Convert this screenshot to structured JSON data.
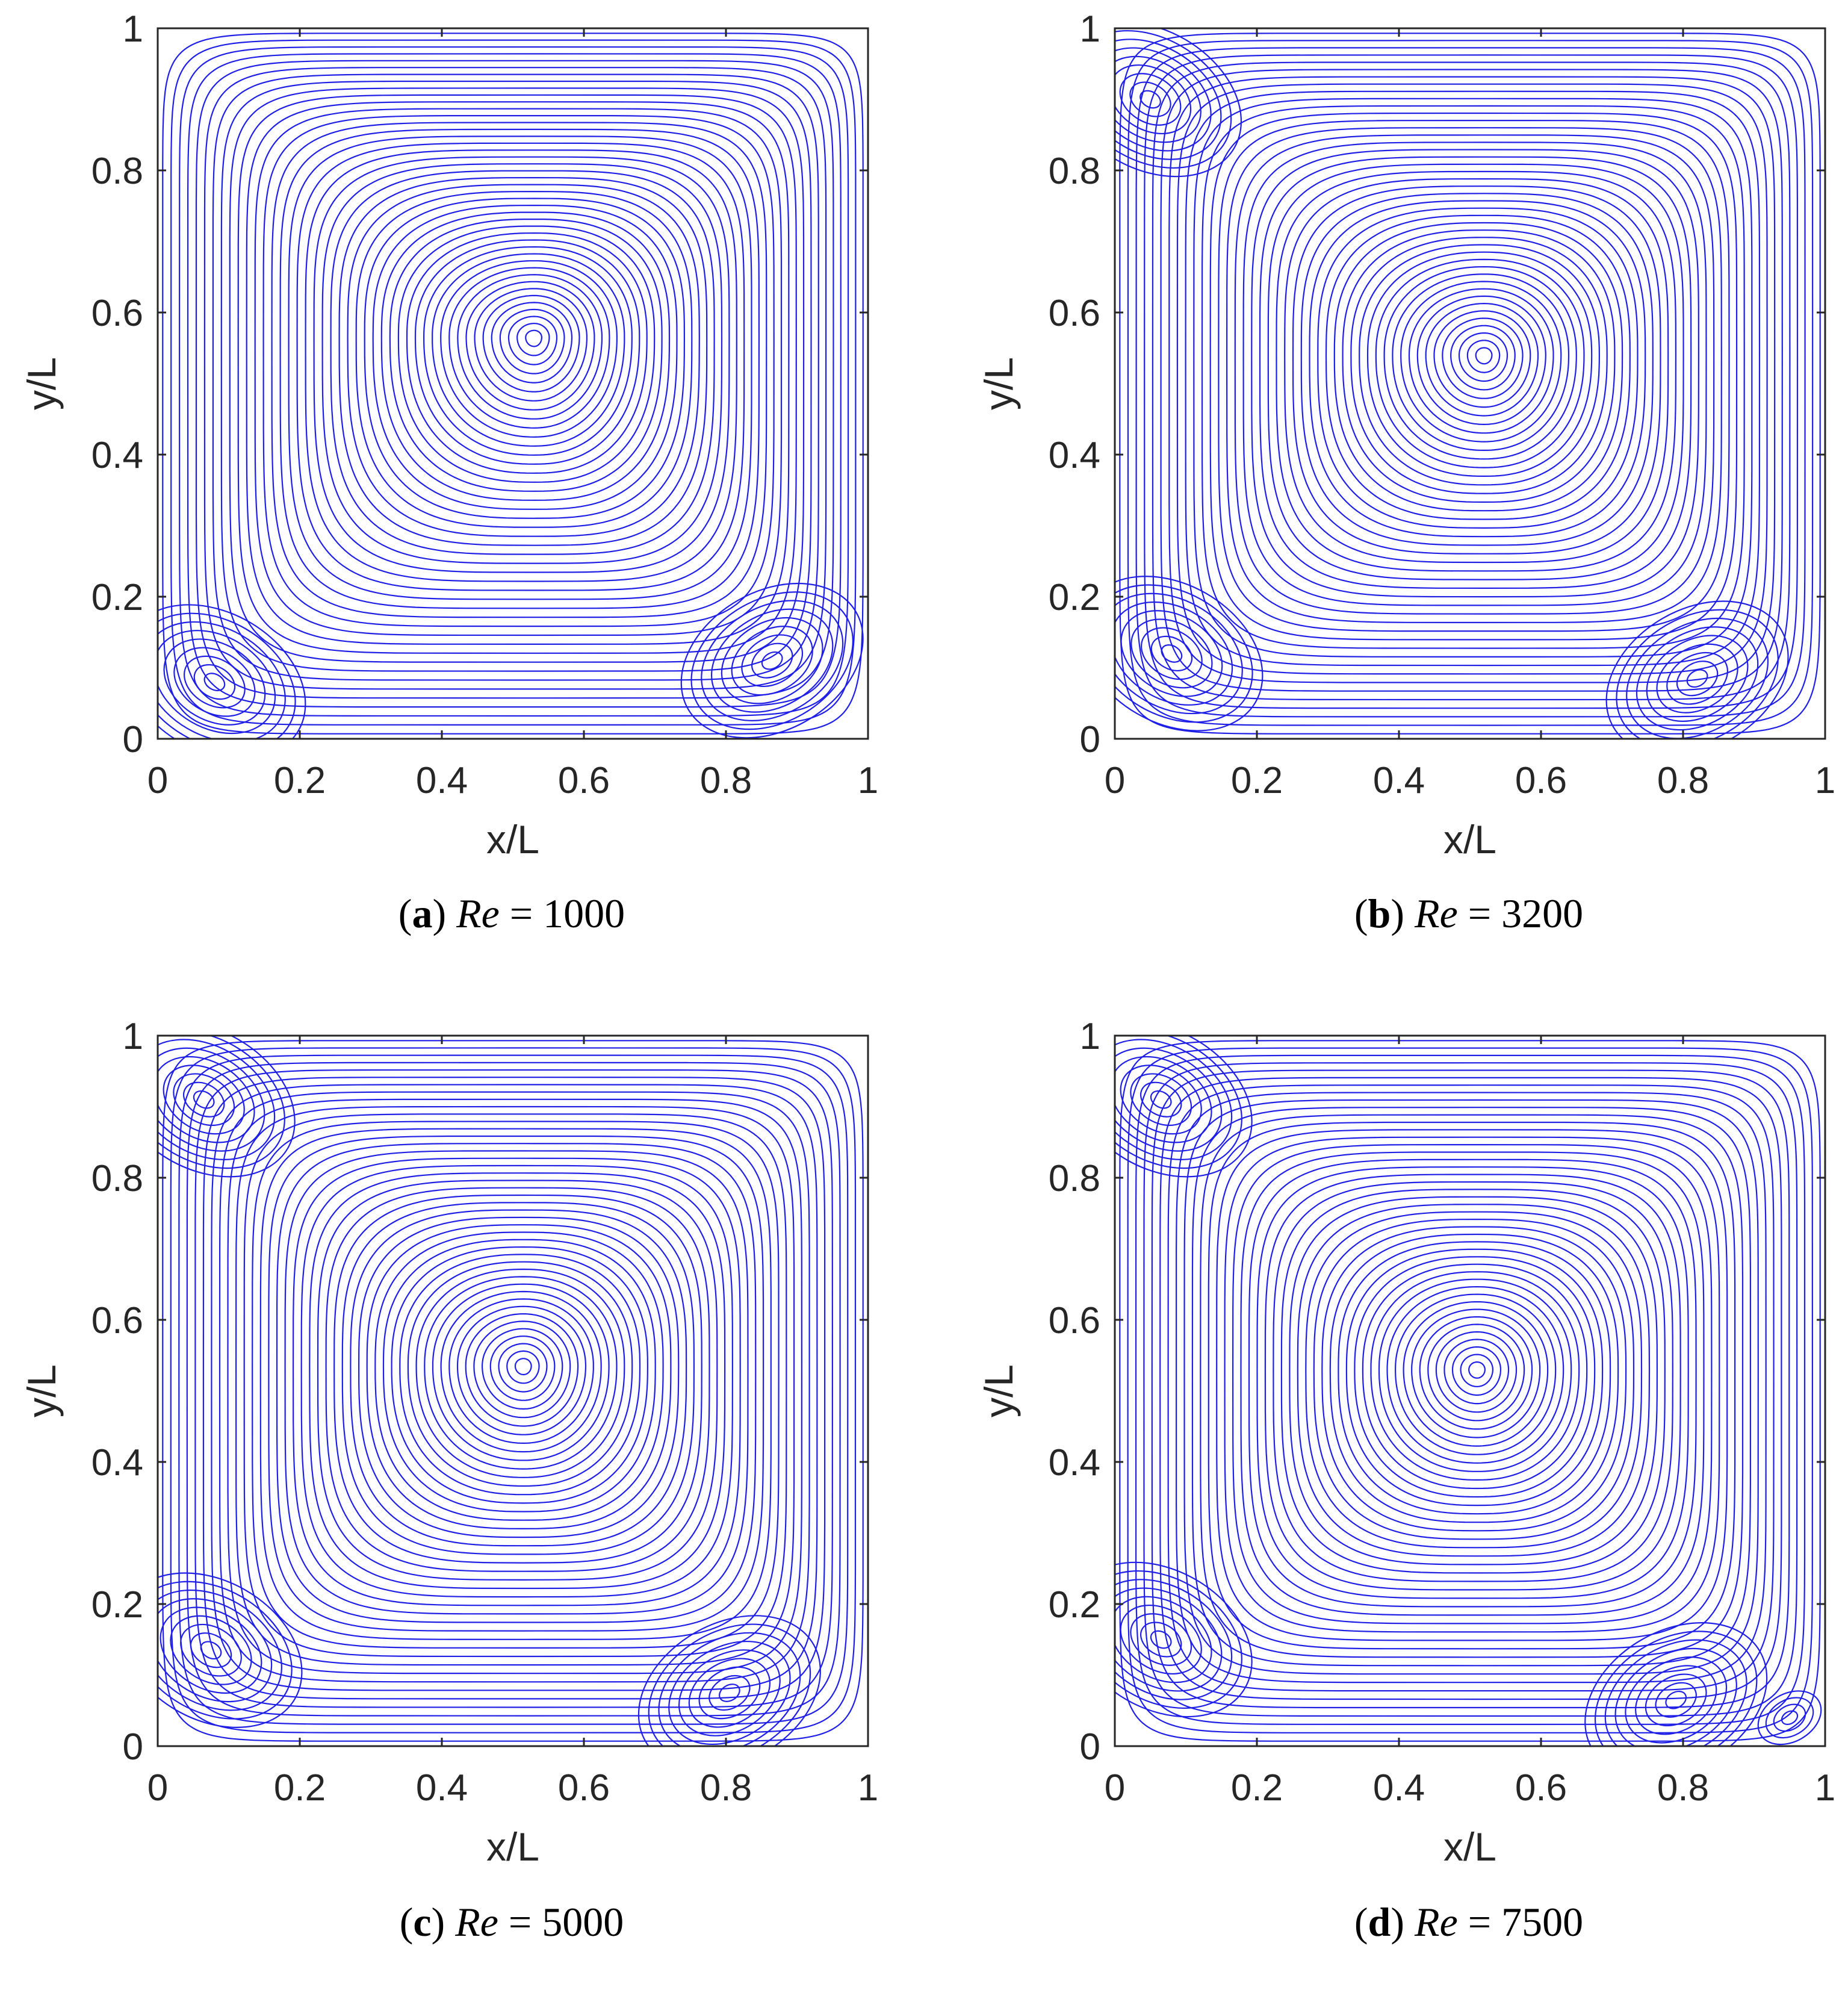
{
  "colors": {
    "streamline": "#1f1fe6",
    "axes": "#262626",
    "background": "#ffffff"
  },
  "chart_data": [
    {
      "type": "streamline",
      "panel_letter": "a",
      "reynolds_label": "Re",
      "reynolds_value": "1000",
      "xlabel": "x/L",
      "ylabel": "y/L",
      "xlim": [
        0,
        1
      ],
      "ylim": [
        0,
        1
      ],
      "xticks": [
        "0",
        "0.2",
        "0.4",
        "0.6",
        "0.8",
        "1"
      ],
      "yticks": [
        "0",
        "0.2",
        "0.4",
        "0.6",
        "0.8",
        "1"
      ],
      "primary_vortex": {
        "x": 0.53,
        "y": 0.565
      },
      "secondary_vortices": [
        {
          "location": "bottom-left",
          "x": 0.08,
          "y": 0.08
        },
        {
          "location": "bottom-right",
          "x": 0.865,
          "y": 0.11
        }
      ]
    },
    {
      "type": "streamline",
      "panel_letter": "b",
      "reynolds_label": "Re",
      "reynolds_value": "3200",
      "xlabel": "x/L",
      "ylabel": "y/L",
      "xlim": [
        0,
        1
      ],
      "ylim": [
        0,
        1
      ],
      "xticks": [
        "0",
        "0.2",
        "0.4",
        "0.6",
        "0.8",
        "1"
      ],
      "yticks": [
        "0",
        "0.2",
        "0.4",
        "0.6",
        "0.8",
        "1"
      ],
      "primary_vortex": {
        "x": 0.52,
        "y": 0.54
      },
      "secondary_vortices": [
        {
          "location": "bottom-left",
          "x": 0.08,
          "y": 0.12
        },
        {
          "location": "bottom-right",
          "x": 0.82,
          "y": 0.085
        },
        {
          "location": "top-left",
          "x": 0.05,
          "y": 0.9
        }
      ]
    },
    {
      "type": "streamline",
      "panel_letter": "c",
      "reynolds_label": "Re",
      "reynolds_value": "5000",
      "xlabel": "x/L",
      "ylabel": "y/L",
      "xlim": [
        0,
        1
      ],
      "ylim": [
        0,
        1
      ],
      "xticks": [
        "0",
        "0.2",
        "0.4",
        "0.6",
        "0.8",
        "1"
      ],
      "yticks": [
        "0",
        "0.2",
        "0.4",
        "0.6",
        "0.8",
        "1"
      ],
      "primary_vortex": {
        "x": 0.515,
        "y": 0.535
      },
      "secondary_vortices": [
        {
          "location": "bottom-left",
          "x": 0.075,
          "y": 0.135
        },
        {
          "location": "bottom-right",
          "x": 0.805,
          "y": 0.075
        },
        {
          "location": "top-left",
          "x": 0.065,
          "y": 0.91
        }
      ]
    },
    {
      "type": "streamline",
      "panel_letter": "d",
      "reynolds_label": "Re",
      "reynolds_value": "7500",
      "xlabel": "x/L",
      "ylabel": "y/L",
      "xlim": [
        0,
        1
      ],
      "ylim": [
        0,
        1
      ],
      "xticks": [
        "0",
        "0.2",
        "0.4",
        "0.6",
        "0.8",
        "1"
      ],
      "yticks": [
        "0",
        "0.2",
        "0.4",
        "0.6",
        "0.8",
        "1"
      ],
      "primary_vortex": {
        "x": 0.51,
        "y": 0.53
      },
      "secondary_vortices": [
        {
          "location": "bottom-left",
          "x": 0.065,
          "y": 0.15
        },
        {
          "location": "bottom-right",
          "x": 0.79,
          "y": 0.065
        },
        {
          "location": "top-left",
          "x": 0.065,
          "y": 0.91
        },
        {
          "location": "bottom-right-corner",
          "x": 0.95,
          "y": 0.04
        }
      ]
    }
  ]
}
